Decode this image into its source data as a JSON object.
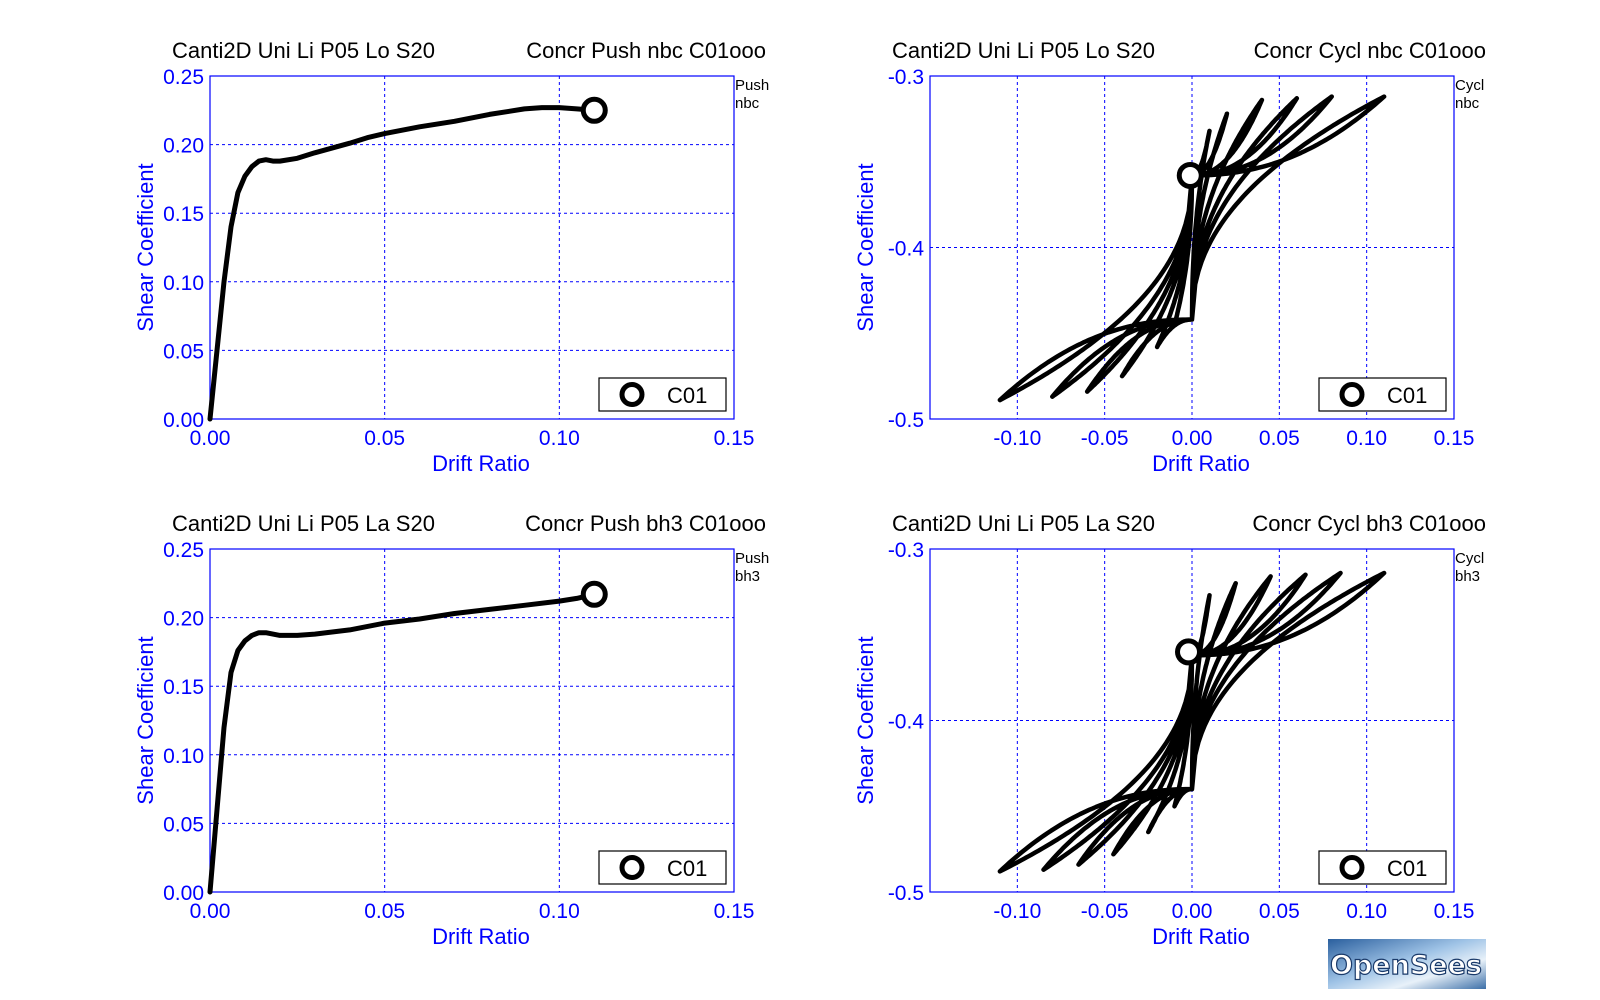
{
  "chart_data": [
    {
      "type": "line",
      "title_left": "Canti2D Uni Li P05 Lo S20",
      "title_right": "Concr Push nbc C01ooo",
      "side_label": [
        "Push",
        "nbc"
      ],
      "xlabel": "Drift Ratio",
      "ylabel": "Shear Coefficient",
      "xlim": [
        0,
        0.15
      ],
      "ylim": [
        0,
        0.25
      ],
      "xticks": [
        "0.00",
        "0.05",
        "0.10",
        "0.15"
      ],
      "yticks": [
        "0.00",
        "0.05",
        "0.10",
        "0.15",
        "0.20",
        "0.25"
      ],
      "grid": true,
      "legend": {
        "position": "bottom-right",
        "entries": [
          "C01"
        ]
      },
      "series": [
        {
          "name": "C01",
          "x": [
            0,
            0.002,
            0.004,
            0.006,
            0.008,
            0.01,
            0.012,
            0.014,
            0.016,
            0.018,
            0.02,
            0.025,
            0.03,
            0.04,
            0.045,
            0.05,
            0.06,
            0.07,
            0.08,
            0.085,
            0.09,
            0.095,
            0.1,
            0.105,
            0.11
          ],
          "y": [
            0,
            0.05,
            0.1,
            0.14,
            0.165,
            0.177,
            0.184,
            0.188,
            0.189,
            0.188,
            0.188,
            0.19,
            0.194,
            0.201,
            0.205,
            0.208,
            0.213,
            0.217,
            0.222,
            0.224,
            0.226,
            0.227,
            0.227,
            0.226,
            0.225
          ],
          "marker_at_end": true
        }
      ]
    },
    {
      "type": "line",
      "title_left": "Canti2D Uni Li P05 Lo S20",
      "title_right": "Concr Cycl nbc C01ooo",
      "side_label": [
        "Cycl",
        "nbc"
      ],
      "xlabel": "Drift Ratio",
      "ylabel": "Shear Coefficient",
      "xlim": [
        -0.15,
        0.15
      ],
      "ylim": [
        -0.5,
        -0.3
      ],
      "xticks": [
        "-0.10",
        "-0.05",
        "0.00",
        "0.05",
        "0.10",
        "0.15"
      ],
      "yticks": [
        "-0.5",
        "-0.4",
        "-0.3"
      ],
      "grid": true,
      "legend": {
        "position": "bottom-right",
        "entries": [
          "C01"
        ]
      },
      "cycles": {
        "amplitudes": [
          0.01,
          0.02,
          0.04,
          0.06,
          0.08,
          0.11
        ],
        "positive_peaks": [
          -0.332,
          -0.322,
          -0.314,
          -0.313,
          -0.312,
          -0.312
        ],
        "negative_peaks": [
          -0.445,
          -0.458,
          -0.475,
          -0.484,
          -0.487,
          -0.489
        ],
        "y_at_zero_upper": -0.358,
        "y_at_zero_lower": -0.442,
        "marker_point": [
          -0.001,
          -0.358
        ]
      }
    },
    {
      "type": "line",
      "title_left": "Canti2D Uni Li P05 La S20",
      "title_right": "Concr Push bh3 C01ooo",
      "side_label": [
        "Push",
        "bh3"
      ],
      "xlabel": "Drift Ratio",
      "ylabel": "Shear Coefficient",
      "xlim": [
        0,
        0.15
      ],
      "ylim": [
        0,
        0.25
      ],
      "xticks": [
        "0.00",
        "0.05",
        "0.10",
        "0.15"
      ],
      "yticks": [
        "0.00",
        "0.05",
        "0.10",
        "0.15",
        "0.20",
        "0.25"
      ],
      "grid": true,
      "legend": {
        "position": "bottom-right",
        "entries": [
          "C01"
        ]
      },
      "series": [
        {
          "name": "C01",
          "x": [
            0,
            0.002,
            0.004,
            0.006,
            0.008,
            0.01,
            0.012,
            0.014,
            0.016,
            0.018,
            0.02,
            0.025,
            0.03,
            0.04,
            0.05,
            0.06,
            0.07,
            0.08,
            0.09,
            0.1,
            0.105,
            0.11
          ],
          "y": [
            0,
            0.06,
            0.12,
            0.16,
            0.176,
            0.183,
            0.187,
            0.189,
            0.189,
            0.188,
            0.187,
            0.187,
            0.188,
            0.191,
            0.196,
            0.199,
            0.203,
            0.206,
            0.209,
            0.212,
            0.214,
            0.217
          ],
          "marker_at_end": true
        }
      ]
    },
    {
      "type": "line",
      "title_left": "Canti2D Uni Li P05 La S20",
      "title_right": "Concr Cycl bh3 C01ooo",
      "side_label": [
        "Cycl",
        "bh3"
      ],
      "xlabel": "Drift Ratio",
      "ylabel": "Shear Coefficient",
      "xlim": [
        -0.15,
        0.15
      ],
      "ylim": [
        -0.5,
        -0.3
      ],
      "xticks": [
        "-0.10",
        "-0.05",
        "0.00",
        "0.05",
        "0.10",
        "0.15"
      ],
      "yticks": [
        "-0.5",
        "-0.4",
        "-0.3"
      ],
      "grid": true,
      "legend": {
        "position": "bottom-right",
        "entries": [
          "C01"
        ]
      },
      "cycles": {
        "amplitudes": [
          0.01,
          0.025,
          0.045,
          0.065,
          0.085,
          0.11
        ],
        "positive_peaks": [
          -0.327,
          -0.32,
          -0.316,
          -0.315,
          -0.314,
          -0.314
        ],
        "negative_peaks": [
          -0.45,
          -0.465,
          -0.478,
          -0.484,
          -0.487,
          -0.488
        ],
        "y_at_zero_upper": -0.362,
        "y_at_zero_lower": -0.44,
        "marker_point": [
          -0.002,
          -0.36
        ]
      }
    }
  ],
  "logo": {
    "text": "OpenSees"
  }
}
